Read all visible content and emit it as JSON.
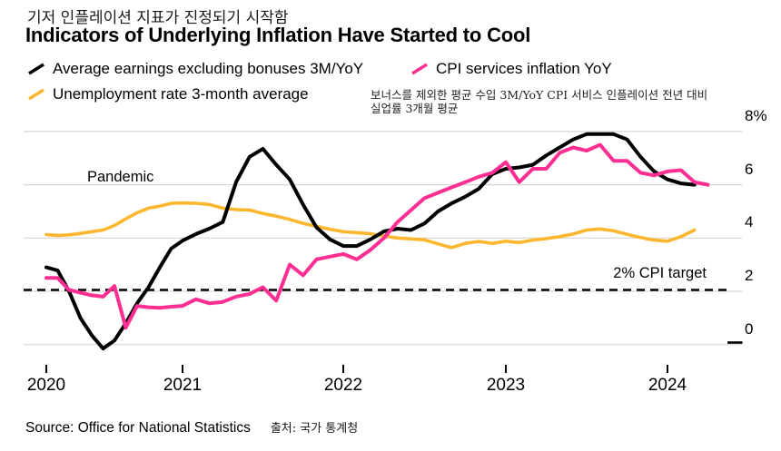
{
  "header": {
    "subtitle_ko": "기저 인플레이션 지표가 진정되기 시작함",
    "title": "Indicators of Underlying Inflation Have Started to Cool"
  },
  "legend": {
    "items": [
      {
        "label": "Average earnings excluding bonuses 3M/YoY",
        "color": "#000000"
      },
      {
        "label": "CPI services inflation YoY",
        "color": "#ff2e92"
      },
      {
        "label": "Unemployment rate 3-month average",
        "color": "#fcb72e"
      }
    ],
    "annotation_ko_line1": "보너스를 제외한 평균 수입 3M/YoY   CPI 서비스 인플레이션 전년 대비",
    "annotation_ko_line2": "실업률 3개월 평균"
  },
  "chart_data": {
    "type": "line",
    "unit": "%",
    "x_start": "2020-01",
    "frequency": "monthly",
    "x_tick_labels": [
      "2020",
      "2021",
      "2022",
      "2023",
      "2024"
    ],
    "y_ticks": [
      0,
      2,
      4,
      6,
      8
    ],
    "y_top_tick_label": "8%",
    "ylim": [
      -0.8,
      8.2
    ],
    "grid": "horizontal",
    "legend_position": "top",
    "target_line": {
      "value": 2,
      "label": "2% CPI target",
      "style": "dashed"
    },
    "annotations": [
      {
        "label": "Pandemic",
        "x": 2020.3,
        "y": 6.25
      }
    ],
    "series": [
      {
        "name": "Average earnings excluding bonuses 3M/YoY",
        "color": "#000000",
        "values": [
          2.9,
          2.78,
          2.0,
          1.0,
          0.35,
          -0.15,
          0.15,
          0.8,
          1.55,
          2.15,
          2.9,
          3.6,
          3.9,
          4.15,
          4.35,
          4.6,
          6.1,
          7.05,
          7.35,
          6.75,
          6.2,
          5.25,
          4.4,
          3.95,
          3.7,
          3.7,
          3.95,
          4.25,
          4.35,
          4.3,
          4.55,
          5.0,
          5.3,
          5.55,
          5.85,
          6.4,
          6.6,
          6.65,
          6.75,
          7.1,
          7.4,
          7.7,
          7.9,
          7.9,
          7.9,
          7.7,
          7.05,
          6.5,
          6.2,
          6.05,
          6.0
        ]
      },
      {
        "name": "CPI services inflation YoY",
        "color": "#ff2e92",
        "values": [
          2.5,
          2.5,
          2.05,
          1.95,
          1.85,
          1.8,
          2.2,
          0.63,
          1.45,
          1.4,
          1.38,
          1.42,
          1.45,
          1.7,
          1.55,
          1.6,
          1.8,
          1.9,
          2.15,
          1.65,
          3.0,
          2.6,
          3.2,
          3.3,
          3.4,
          3.2,
          3.55,
          4.0,
          4.6,
          5.05,
          5.5,
          5.7,
          5.9,
          6.1,
          6.3,
          6.45,
          6.85,
          6.1,
          6.6,
          6.6,
          7.2,
          7.4,
          7.28,
          7.5,
          6.9,
          6.9,
          6.45,
          6.35,
          6.5,
          6.55,
          6.1,
          6.0
        ]
      },
      {
        "name": "Unemployment rate 3-month average",
        "color": "#fcb72e",
        "values": [
          4.13,
          4.1,
          4.12,
          4.17,
          4.24,
          4.3,
          4.47,
          4.72,
          4.95,
          5.12,
          5.2,
          5.3,
          5.32,
          5.3,
          5.26,
          5.12,
          5.07,
          5.05,
          4.92,
          4.82,
          4.7,
          4.55,
          4.44,
          4.33,
          4.24,
          4.2,
          4.16,
          4.08,
          4.0,
          3.97,
          3.93,
          3.78,
          3.64,
          3.8,
          3.87,
          3.8,
          3.88,
          3.83,
          3.92,
          3.98,
          4.05,
          4.15,
          4.3,
          4.34,
          4.27,
          4.14,
          4.02,
          3.92,
          3.88,
          4.05,
          4.3
        ]
      }
    ]
  },
  "footer": {
    "source": "Source: Office for National Statistics",
    "source_ko": "출처: 국가 통계청"
  }
}
